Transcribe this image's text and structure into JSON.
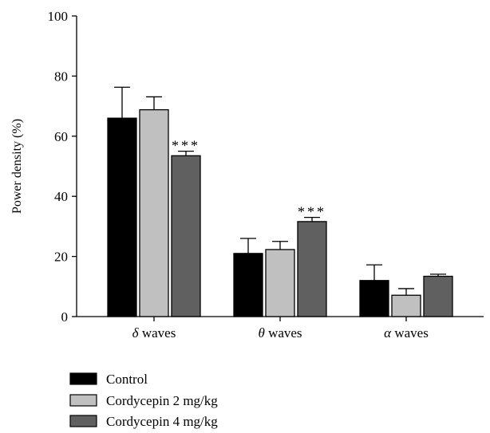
{
  "chart_data": {
    "type": "bar",
    "title": "",
    "xlabel": "",
    "ylabel": "Power density (%)",
    "ylim": [
      0,
      100
    ],
    "yticks": [
      0,
      20,
      40,
      60,
      80,
      100
    ],
    "categories": [
      "δ waves",
      "θ waves",
      "α waves"
    ],
    "category_parts": [
      {
        "symbol": "δ",
        "word": " waves"
      },
      {
        "symbol": "θ",
        "word": " waves"
      },
      {
        "symbol": "α",
        "word": " waves"
      }
    ],
    "series": [
      {
        "name": "Control",
        "color": "#000000",
        "values": [
          66,
          21,
          12
        ],
        "errors": [
          10.3,
          5,
          5.2
        ],
        "annotations": [
          "",
          "",
          ""
        ]
      },
      {
        "name": "Cordycepin 2 mg/kg",
        "color": "#c0c0c0",
        "values": [
          68.8,
          22.3,
          7.1
        ],
        "errors": [
          4.3,
          2.7,
          2.2
        ],
        "annotations": [
          "",
          "",
          ""
        ]
      },
      {
        "name": "Cordycepin 4 mg/kg",
        "color": "#606060",
        "values": [
          53.5,
          31.6,
          13.4
        ],
        "errors": [
          1.5,
          1.4,
          0.7
        ],
        "annotations": [
          "***",
          "***",
          ""
        ]
      }
    ],
    "grid": false,
    "legend_position": "bottom-left"
  }
}
